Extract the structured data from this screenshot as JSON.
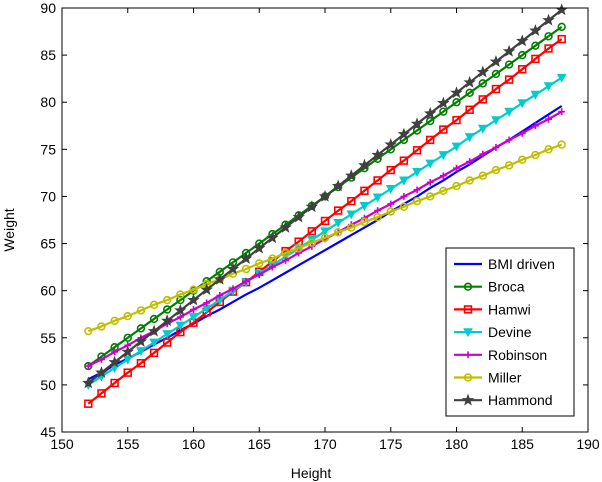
{
  "chart_data": {
    "type": "line",
    "title": "",
    "xlabel": "Height",
    "ylabel": "Weight",
    "xlim": [
      150,
      190
    ],
    "ylim": [
      45,
      90
    ],
    "xticks": [
      150,
      155,
      160,
      165,
      170,
      175,
      180,
      185,
      190
    ],
    "yticks": [
      45,
      50,
      55,
      60,
      65,
      70,
      75,
      80,
      85,
      90
    ],
    "grid": false,
    "legend_position": "bottom-right",
    "x": [
      152,
      153,
      154,
      155,
      156,
      157,
      158,
      159,
      160,
      161,
      162,
      163,
      164,
      165,
      166,
      167,
      168,
      169,
      170,
      171,
      172,
      173,
      174,
      175,
      176,
      177,
      178,
      179,
      180,
      181,
      182,
      183,
      184,
      185,
      186,
      187,
      188
    ],
    "series": [
      {
        "name": "BMI driven",
        "color": "#0000ff",
        "marker": "none",
        "values": [
          50.6,
          51.3,
          52.1,
          52.8,
          53.5,
          54.3,
          55.0,
          55.8,
          56.5,
          57.3,
          58.0,
          58.8,
          59.6,
          60.3,
          61.1,
          61.9,
          62.7,
          63.5,
          64.3,
          65.1,
          65.9,
          66.7,
          67.5,
          68.4,
          69.2,
          70.0,
          70.9,
          71.7,
          72.6,
          73.4,
          74.3,
          75.2,
          76.0,
          76.9,
          77.8,
          78.7,
          79.6
        ]
      },
      {
        "name": "Broca",
        "color": "#008000",
        "marker": "circle",
        "values": [
          52,
          53,
          54,
          55,
          56,
          57,
          58,
          59,
          60,
          61,
          62,
          63,
          64,
          65,
          66,
          67,
          68,
          69,
          70,
          71,
          72,
          73,
          74,
          75,
          76,
          77,
          78,
          79,
          80,
          81,
          82,
          83,
          84,
          85,
          86,
          87,
          88
        ]
      },
      {
        "name": "Hamwi",
        "color": "#ff0000",
        "marker": "square",
        "values": [
          48.0,
          49.1,
          50.2,
          51.3,
          52.3,
          53.4,
          54.5,
          55.6,
          56.6,
          57.7,
          58.8,
          59.9,
          60.9,
          62.0,
          63.1,
          64.2,
          65.2,
          66.3,
          67.4,
          68.5,
          69.5,
          70.6,
          71.7,
          72.8,
          73.8,
          74.9,
          76.0,
          77.1,
          78.1,
          79.2,
          80.3,
          81.4,
          82.4,
          83.5,
          84.6,
          85.7,
          86.7
        ]
      },
      {
        "name": "Devine",
        "color": "#00cccc",
        "marker": "triangle-down",
        "values": [
          50.0,
          50.9,
          51.8,
          52.7,
          53.6,
          54.5,
          55.4,
          56.3,
          57.2,
          58.1,
          59.0,
          60.0,
          60.9,
          61.8,
          62.7,
          63.6,
          64.5,
          65.4,
          66.3,
          67.2,
          68.1,
          69.0,
          69.9,
          70.8,
          71.7,
          72.6,
          73.5,
          74.4,
          75.3,
          76.3,
          77.2,
          78.1,
          79.0,
          79.9,
          80.8,
          81.7,
          82.6
        ]
      },
      {
        "name": "Robinson",
        "color": "#cc00cc",
        "marker": "plus",
        "values": [
          52.0,
          52.7,
          53.5,
          54.2,
          55.0,
          55.7,
          56.5,
          57.2,
          58.0,
          58.7,
          59.5,
          60.2,
          61.0,
          61.7,
          62.5,
          63.2,
          64.0,
          64.7,
          65.5,
          66.2,
          67.0,
          67.7,
          68.5,
          69.2,
          70.0,
          70.7,
          71.5,
          72.2,
          73.0,
          73.7,
          74.5,
          75.2,
          76.0,
          76.7,
          77.5,
          78.2,
          79.0
        ]
      },
      {
        "name": "Miller",
        "color": "#bfbf00",
        "marker": "circle",
        "values": [
          55.7,
          56.2,
          56.8,
          57.3,
          57.9,
          58.5,
          59.0,
          59.6,
          60.1,
          60.7,
          61.2,
          61.8,
          62.3,
          62.9,
          63.4,
          64.0,
          64.5,
          65.1,
          65.6,
          66.2,
          66.7,
          67.3,
          67.8,
          68.4,
          68.9,
          69.5,
          70.0,
          70.6,
          71.1,
          71.7,
          72.2,
          72.8,
          73.3,
          73.9,
          74.4,
          75.0,
          75.5
        ]
      },
      {
        "name": "Hammond",
        "color": "#404040",
        "marker": "star",
        "values": [
          50.2,
          51.3,
          52.4,
          53.5,
          54.6,
          55.7,
          56.8,
          57.9,
          59.0,
          60.1,
          61.2,
          62.3,
          63.4,
          64.5,
          65.6,
          66.7,
          67.8,
          68.9,
          70.0,
          71.1,
          72.2,
          73.3,
          74.4,
          75.5,
          76.6,
          77.7,
          78.8,
          79.9,
          81.0,
          82.1,
          83.2,
          84.3,
          85.4,
          86.5,
          87.6,
          88.7,
          89.8
        ]
      }
    ]
  }
}
